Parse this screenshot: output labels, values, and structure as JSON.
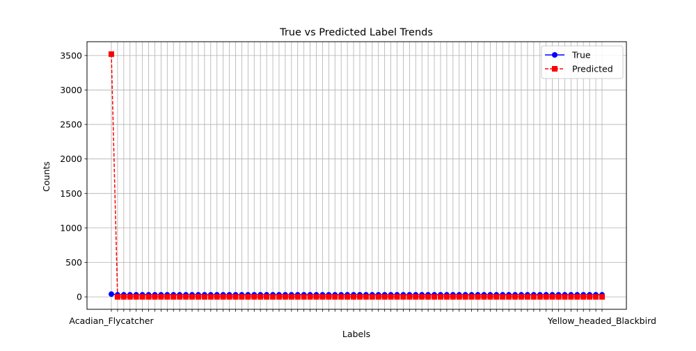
{
  "chart_data": {
    "type": "line",
    "title": "True vs Predicted Label Trends",
    "xlabel": "Labels",
    "ylabel": "Counts",
    "ylim": [
      -180,
      3700
    ],
    "yticks": [
      0,
      500,
      1000,
      1500,
      2000,
      2500,
      3000,
      3500
    ],
    "grid": true,
    "legend_position": "top-right",
    "category_count": 80,
    "tick_labels_visible": {
      "first": "Acadian_Flycatcher",
      "last": "Yellow_headed_Blackbird"
    },
    "series": [
      {
        "name": "True",
        "color": "#0000ff",
        "line_style": "solid",
        "marker": "circle",
        "values": [
          40,
          30,
          30,
          30,
          30,
          30,
          30,
          30,
          30,
          30,
          30,
          30,
          30,
          30,
          30,
          30,
          30,
          30,
          30,
          30,
          30,
          30,
          30,
          30,
          30,
          30,
          30,
          30,
          30,
          30,
          30,
          30,
          30,
          30,
          30,
          30,
          30,
          30,
          30,
          30,
          30,
          30,
          30,
          30,
          30,
          30,
          30,
          30,
          30,
          30,
          30,
          30,
          30,
          30,
          30,
          30,
          30,
          30,
          30,
          30,
          30,
          30,
          30,
          30,
          30,
          30,
          30,
          30,
          30,
          30,
          30,
          30,
          30,
          30,
          30,
          30,
          30,
          30,
          30,
          30
        ]
      },
      {
        "name": "Predicted",
        "color": "#ff0000",
        "line_style": "dashed",
        "marker": "square",
        "values": [
          3520,
          0,
          0,
          0,
          0,
          0,
          0,
          0,
          0,
          0,
          0,
          0,
          0,
          0,
          0,
          0,
          0,
          0,
          0,
          0,
          0,
          0,
          0,
          0,
          0,
          0,
          0,
          0,
          0,
          0,
          0,
          0,
          0,
          0,
          0,
          0,
          0,
          0,
          0,
          0,
          0,
          0,
          0,
          0,
          0,
          0,
          0,
          0,
          0,
          0,
          0,
          0,
          0,
          0,
          0,
          0,
          0,
          0,
          0,
          0,
          0,
          0,
          0,
          0,
          0,
          0,
          0,
          0,
          0,
          0,
          0,
          0,
          0,
          0,
          0,
          0,
          0,
          0,
          0,
          0
        ]
      }
    ]
  }
}
